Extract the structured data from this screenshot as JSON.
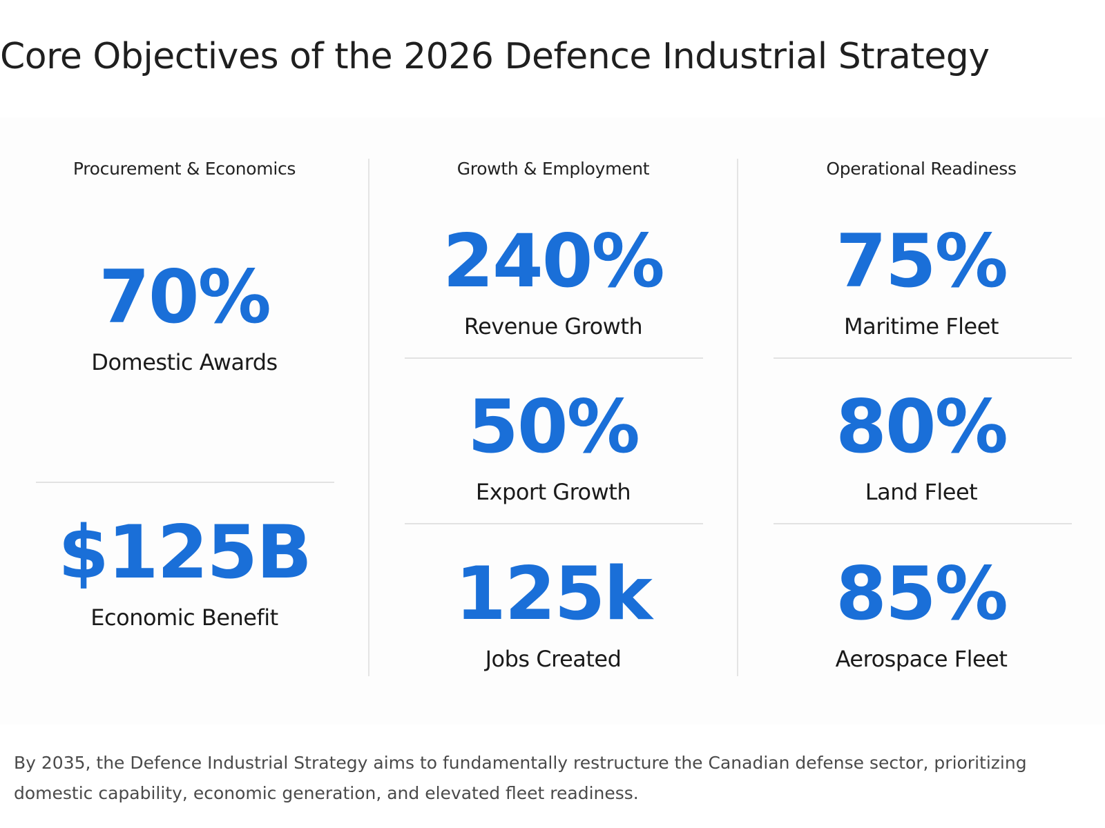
{
  "title": "Core Objectives of the 2026 Defence Industrial Strategy",
  "colors": {
    "accent": "#1a6fd8",
    "heading_text": "#222222",
    "label_text": "#1a1a1a",
    "body_text": "#4a4a4a",
    "divider": "#e2e2e2"
  },
  "columns": [
    {
      "heading": "Procurement & Economics",
      "stats": [
        {
          "value": "70%",
          "label": "Domestic Awards"
        },
        {
          "value": "$125B",
          "label": "Economic Benefit"
        }
      ]
    },
    {
      "heading": "Growth & Employment",
      "stats": [
        {
          "value": "240%",
          "label": "Revenue Growth"
        },
        {
          "value": "50%",
          "label": "Export Growth"
        },
        {
          "value": "125k",
          "label": "Jobs Created"
        }
      ]
    },
    {
      "heading": "Operational Readiness",
      "stats": [
        {
          "value": "75%",
          "label": "Maritime Fleet"
        },
        {
          "value": "80%",
          "label": "Land Fleet"
        },
        {
          "value": "85%",
          "label": "Aerospace Fleet"
        }
      ]
    }
  ],
  "summary": "By 2035, the Defence Industrial Strategy aims to fundamentally restructure the Canadian defense sector, prioritizing domestic capability, economic generation, and elevated fleet readiness."
}
